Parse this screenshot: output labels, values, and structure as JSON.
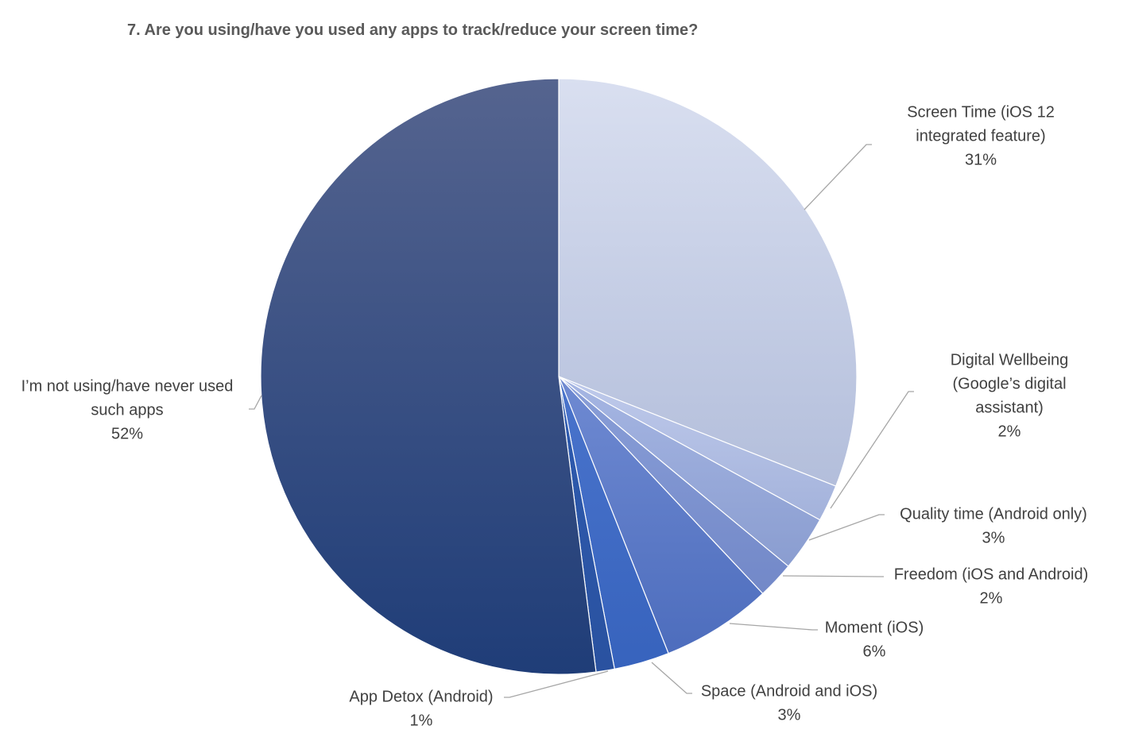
{
  "chart_data": {
    "type": "pie",
    "title": "7. Are you using/have you used any apps to track/reduce your screen time?",
    "slices": [
      {
        "label": [
          "Screen Time (iOS 12",
          "integrated feature)"
        ],
        "percent_label": "31%",
        "value": 31,
        "color_top": "#d9dff0",
        "color_bottom": "#b3bedb"
      },
      {
        "label": [
          "Digital Wellbeing",
          "(Google’s digital",
          "assistant)"
        ],
        "percent_label": "2%",
        "value": 2,
        "color_top": "#bfcaeb",
        "color_bottom": "#a3b2db"
      },
      {
        "label": [
          "Quality time (Android only)"
        ],
        "percent_label": "3%",
        "value": 3,
        "color_top": "#a6b6e3",
        "color_bottom": "#8a9dd0"
      },
      {
        "label": [
          "Freedom (iOS and Android)"
        ],
        "percent_label": "2%",
        "value": 2,
        "color_top": "#8a9fd8",
        "color_bottom": "#7288c8"
      },
      {
        "label": [
          "Moment (iOS)"
        ],
        "percent_label": "6%",
        "value": 6,
        "color_top": "#6f8ad2",
        "color_bottom": "#4d6dbd"
      },
      {
        "label": [
          "Space (Android and iOS)"
        ],
        "percent_label": "3%",
        "value": 3,
        "color_top": "#4a74cc",
        "color_bottom": "#3763bd"
      },
      {
        "label": [
          "App Detox (Android)"
        ],
        "percent_label": "1%",
        "value": 1,
        "color_top": "#2e5bb0",
        "color_bottom": "#2a52a0"
      },
      {
        "label": [
          "I’m not using/have never used",
          "such apps"
        ],
        "percent_label": "52%",
        "value": 52,
        "color_top": "#55648f",
        "color_bottom": "#1f3d78"
      }
    ]
  }
}
